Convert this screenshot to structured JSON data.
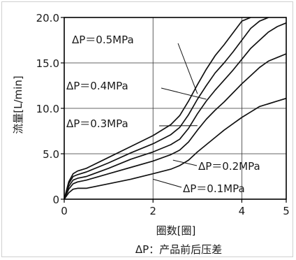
{
  "chart_data": {
    "type": "line",
    "title": "",
    "ylabel": "流量[L/min]",
    "xlabel": "圈数[圈]",
    "footnote": "ΔP：产品前后压差",
    "xlim": [
      0,
      5
    ],
    "ylim": [
      0,
      20
    ],
    "x_ticks": [
      0,
      2,
      4,
      5
    ],
    "y_ticks": [
      0,
      5.0,
      10.0,
      15.0,
      20.0
    ],
    "x_tick_labels": [
      "0",
      "2",
      "4",
      "5"
    ],
    "y_tick_labels": [
      "0",
      "5.0",
      "10.0",
      "15.0",
      "20.0"
    ],
    "grid": true,
    "series": [
      {
        "name": "ΔP＝0.5MPa",
        "x": [
          0,
          0.1,
          0.2,
          0.3,
          0.5,
          1.0,
          1.5,
          2.0,
          2.4,
          2.6,
          2.8,
          3.0,
          3.2,
          3.4,
          3.6,
          3.8,
          4.0,
          4.2
        ],
        "y": [
          0,
          1.9,
          2.8,
          3.1,
          3.4,
          4.6,
          5.8,
          7.0,
          8.2,
          9.2,
          10.8,
          12.6,
          14.3,
          15.8,
          17.0,
          18.3,
          19.6,
          20.0
        ]
      },
      {
        "name": "ΔP＝0.4MPa",
        "x": [
          0,
          0.1,
          0.2,
          0.3,
          0.5,
          1.0,
          1.5,
          2.0,
          2.4,
          2.6,
          2.8,
          3.0,
          3.2,
          3.4,
          3.6,
          3.8,
          4.0,
          4.2,
          4.4,
          4.6
        ],
        "y": [
          0,
          1.7,
          2.5,
          2.7,
          3.0,
          4.0,
          5.1,
          6.1,
          7.1,
          7.9,
          9.3,
          11.0,
          12.5,
          13.9,
          15.0,
          16.2,
          17.5,
          18.8,
          19.6,
          20.0
        ]
      },
      {
        "name": "ΔP＝0.3MPa",
        "x": [
          0,
          0.1,
          0.2,
          0.3,
          0.5,
          1.0,
          1.5,
          2.0,
          2.4,
          2.6,
          2.8,
          3.0,
          3.2,
          3.4,
          3.6,
          3.8,
          4.0,
          4.2,
          4.4,
          4.6,
          4.8,
          5.0
        ],
        "y": [
          0,
          1.4,
          2.1,
          2.3,
          2.5,
          3.4,
          4.4,
          5.2,
          6.0,
          6.6,
          7.8,
          9.4,
          10.8,
          12.0,
          13.1,
          14.2,
          15.4,
          16.6,
          17.5,
          18.4,
          19.0,
          19.4
        ]
      },
      {
        "name": "ΔP＝0.2MPa",
        "x": [
          0,
          0.1,
          0.2,
          0.3,
          0.5,
          1.0,
          1.5,
          2.0,
          2.4,
          2.6,
          2.8,
          3.0,
          3.2,
          3.4,
          3.6,
          3.8,
          4.0,
          4.2,
          4.4,
          4.6,
          4.8,
          5.0
        ],
        "y": [
          0,
          1.1,
          1.7,
          1.9,
          2.1,
          2.8,
          3.5,
          4.2,
          4.9,
          5.4,
          6.3,
          7.6,
          8.8,
          9.8,
          10.7,
          11.7,
          12.7,
          13.6,
          14.5,
          15.2,
          15.6,
          16.0
        ]
      },
      {
        "name": "ΔP＝0.1MPa",
        "x": [
          0,
          0.1,
          0.2,
          0.3,
          0.5,
          1.0,
          1.5,
          2.0,
          2.4,
          2.6,
          2.8,
          3.0,
          3.2,
          3.4,
          3.6,
          3.8,
          4.0,
          4.2,
          4.4,
          4.6,
          4.8,
          5.0
        ],
        "y": [
          0,
          0.7,
          1.1,
          1.2,
          1.2,
          1.7,
          2.2,
          2.8,
          3.3,
          3.7,
          4.3,
          5.2,
          6.0,
          6.8,
          7.6,
          8.3,
          9.0,
          9.6,
          10.2,
          10.5,
          10.8,
          11.1
        ]
      }
    ]
  }
}
